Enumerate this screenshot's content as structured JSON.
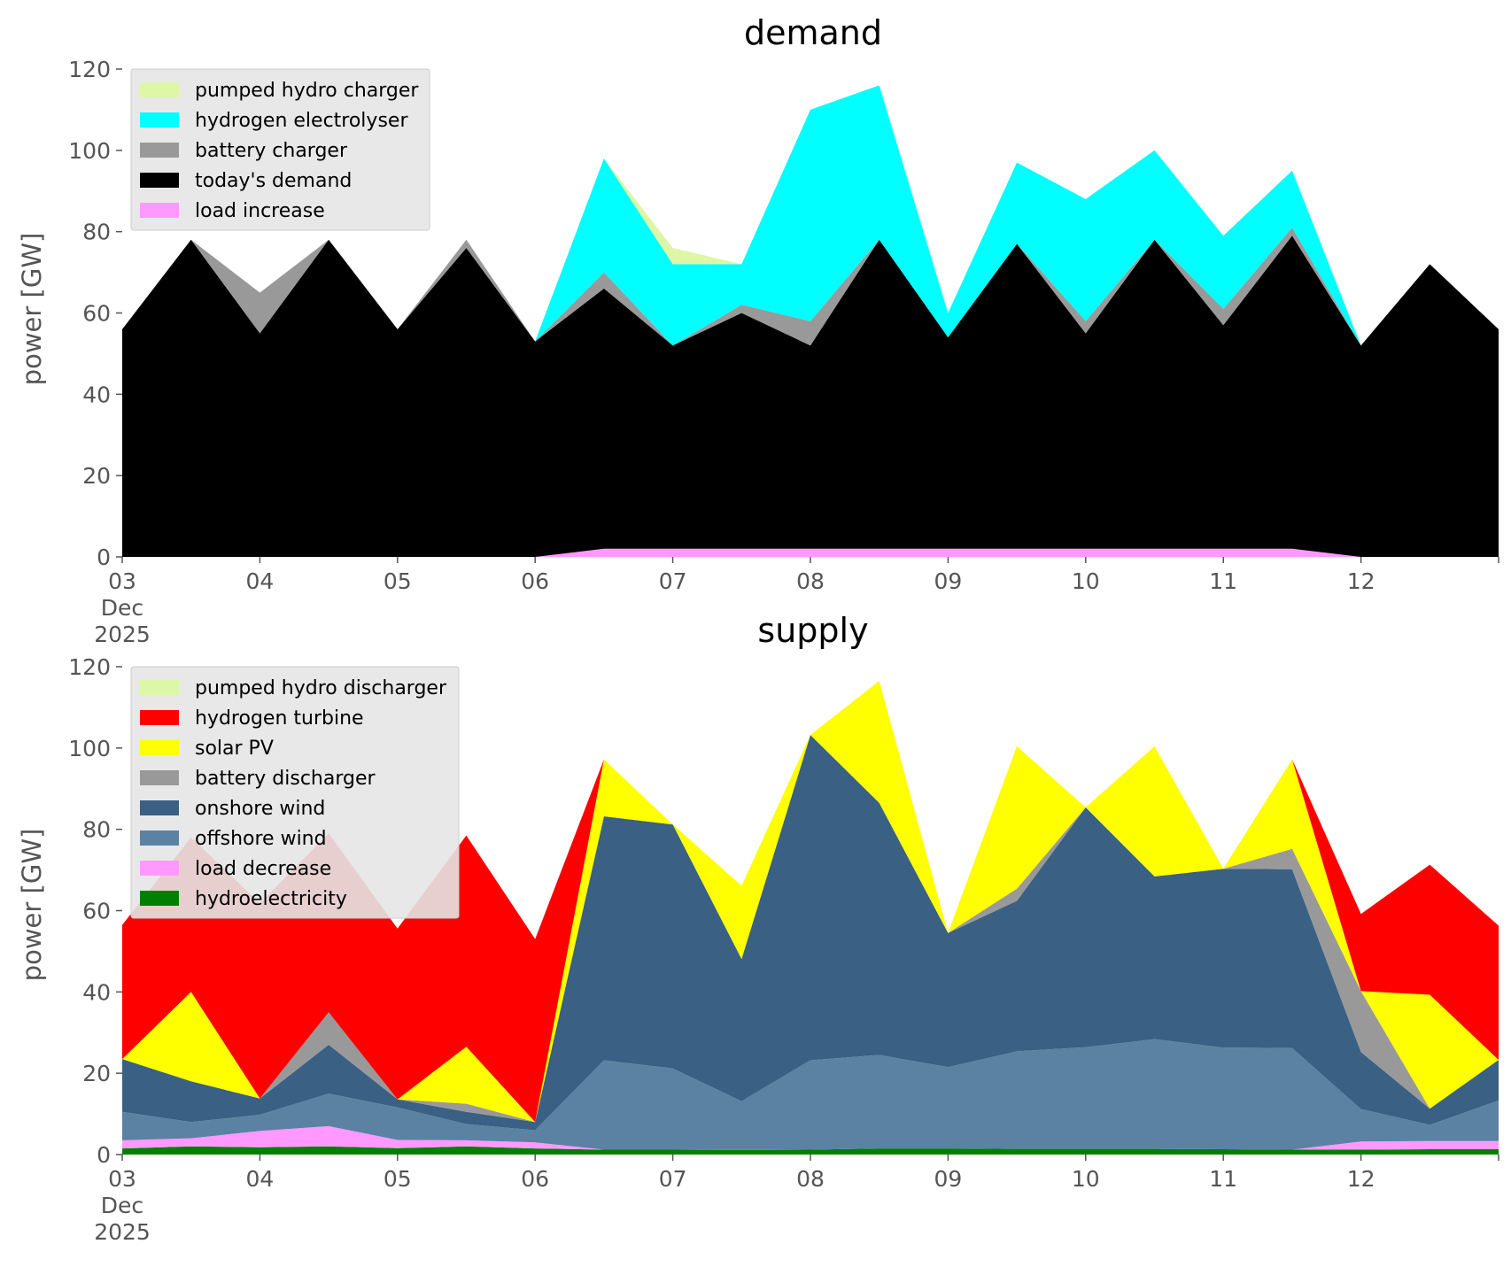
{
  "chart_data": [
    {
      "type": "area",
      "stacked": true,
      "title": "demand",
      "xlabel": "",
      "ylabel": "power [GW]",
      "ylim": [
        0,
        120
      ],
      "yticks": [
        0,
        20,
        40,
        60,
        80,
        100,
        120
      ],
      "xlim": [
        "2025-12-03",
        "2025-12-13"
      ],
      "xtick_labels": [
        "03",
        "04",
        "05",
        "06",
        "07",
        "08",
        "09",
        "10",
        "11",
        "12"
      ],
      "xtick_sublabel": [
        "Dec",
        "2025"
      ],
      "grid": false,
      "legend_position": "top-left",
      "x": [
        "2025-12-03",
        "2025-12-03T12",
        "2025-12-04",
        "2025-12-04T12",
        "2025-12-05",
        "2025-12-05T12",
        "2025-12-06",
        "2025-12-06T12",
        "2025-12-07",
        "2025-12-07T12",
        "2025-12-08",
        "2025-12-08T12",
        "2025-12-09",
        "2025-12-09T12",
        "2025-12-10",
        "2025-12-10T12",
        "2025-12-11",
        "2025-12-11T12",
        "2025-12-12",
        "2025-12-12T12",
        "2025-12-13"
      ],
      "series": [
        {
          "name": "load increase",
          "color": "#ff99ff",
          "values": [
            0,
            0,
            0,
            0,
            0,
            0,
            0,
            2,
            2,
            2,
            2,
            2,
            2,
            2,
            2,
            2,
            2,
            2,
            0,
            0,
            0
          ]
        },
        {
          "name": "today's demand",
          "color": "#000000",
          "values": [
            56,
            78,
            55,
            78,
            56,
            76,
            53,
            64,
            50,
            58,
            50,
            76,
            52,
            75,
            53,
            76,
            55,
            77,
            52,
            72,
            56
          ]
        },
        {
          "name": "battery charger",
          "color": "#999999",
          "values": [
            0,
            0,
            10,
            0,
            0,
            2,
            0,
            4,
            0,
            2,
            6,
            0,
            0,
            0,
            3,
            0,
            4,
            2,
            0,
            0,
            0
          ]
        },
        {
          "name": "hydrogen electrolyser",
          "color": "#00ffff",
          "values": [
            0,
            0,
            0,
            0,
            0,
            0,
            0,
            28,
            20,
            10,
            52,
            38,
            6,
            20,
            30,
            22,
            18,
            14,
            0,
            0,
            0
          ]
        },
        {
          "name": "pumped hydro charger",
          "color": "#ddf7a6",
          "values": [
            0,
            0,
            0,
            0,
            0,
            0,
            0,
            0,
            4,
            0,
            0,
            0,
            0,
            0,
            0,
            0,
            0,
            0,
            0,
            0,
            0
          ]
        }
      ]
    },
    {
      "type": "area",
      "stacked": true,
      "title": "supply",
      "xlabel": "",
      "ylabel": "power [GW]",
      "ylim": [
        0,
        120
      ],
      "yticks": [
        0,
        20,
        40,
        60,
        80,
        100,
        120
      ],
      "xlim": [
        "2025-12-03",
        "2025-12-13"
      ],
      "xtick_labels": [
        "03",
        "04",
        "05",
        "06",
        "07",
        "08",
        "09",
        "10",
        "11",
        "12"
      ],
      "xtick_sublabel": [
        "Dec",
        "2025"
      ],
      "grid": false,
      "legend_position": "top-left",
      "x": [
        "2025-12-03",
        "2025-12-03T12",
        "2025-12-04",
        "2025-12-04T12",
        "2025-12-05",
        "2025-12-05T12",
        "2025-12-06",
        "2025-12-06T12",
        "2025-12-07",
        "2025-12-07T12",
        "2025-12-08",
        "2025-12-08T12",
        "2025-12-09",
        "2025-12-09T12",
        "2025-12-10",
        "2025-12-10T12",
        "2025-12-11",
        "2025-12-11T12",
        "2025-12-12",
        "2025-12-12T12",
        "2025-12-13"
      ],
      "series": [
        {
          "name": "hydroelectricity",
          "color": "#008000",
          "values": [
            1.5,
            2,
            1.8,
            2,
            1.6,
            2,
            1.5,
            1.2,
            1.2,
            1.1,
            1.2,
            1.5,
            1.5,
            1.4,
            1.4,
            1.4,
            1.3,
            1.2,
            1.2,
            1.3,
            1.3
          ]
        },
        {
          "name": "load decrease",
          "color": "#ff99ff",
          "values": [
            2,
            2,
            4,
            5,
            2,
            1.5,
            1.5,
            0,
            0,
            0,
            0,
            0,
            0,
            0,
            0,
            0,
            0,
            0,
            2,
            2,
            2
          ]
        },
        {
          "name": "offshore wind",
          "color": "#5b82a3",
          "values": [
            7,
            4,
            4,
            8,
            8,
            4,
            3,
            22,
            20,
            12,
            22,
            23,
            20,
            24,
            25,
            27,
            25,
            25,
            8,
            4,
            10
          ]
        },
        {
          "name": "onshore wind",
          "color": "#3a6083",
          "values": [
            13,
            10,
            4,
            12,
            2,
            3,
            2,
            60,
            60,
            35,
            80,
            62,
            33,
            37,
            59,
            40,
            44,
            44,
            14,
            4,
            10
          ]
        },
        {
          "name": "battery discharger",
          "color": "#999999",
          "values": [
            0,
            0,
            0,
            8,
            0,
            2,
            0,
            0,
            0,
            0,
            0,
            0,
            0,
            3,
            0,
            0,
            0,
            5,
            15,
            0,
            0
          ]
        },
        {
          "name": "solar PV",
          "color": "#ffff00",
          "values": [
            0,
            22,
            0,
            0,
            0,
            14,
            0,
            14,
            0,
            18,
            0,
            30,
            0,
            35,
            0,
            32,
            0,
            22,
            0,
            28,
            0
          ]
        },
        {
          "name": "hydrogen turbine",
          "color": "#ff0000",
          "values": [
            33,
            38,
            48,
            44,
            42,
            52,
            45,
            0,
            0,
            0,
            0,
            0,
            0,
            0,
            0,
            0,
            0,
            0,
            19,
            32,
            33
          ]
        },
        {
          "name": "pumped hydro discharger",
          "color": "#ddf7a6",
          "values": [
            0,
            0,
            0,
            0,
            0,
            0,
            0,
            0,
            0,
            0,
            0,
            0,
            0,
            0,
            0,
            0,
            0,
            0,
            0,
            0,
            0
          ]
        }
      ]
    }
  ]
}
